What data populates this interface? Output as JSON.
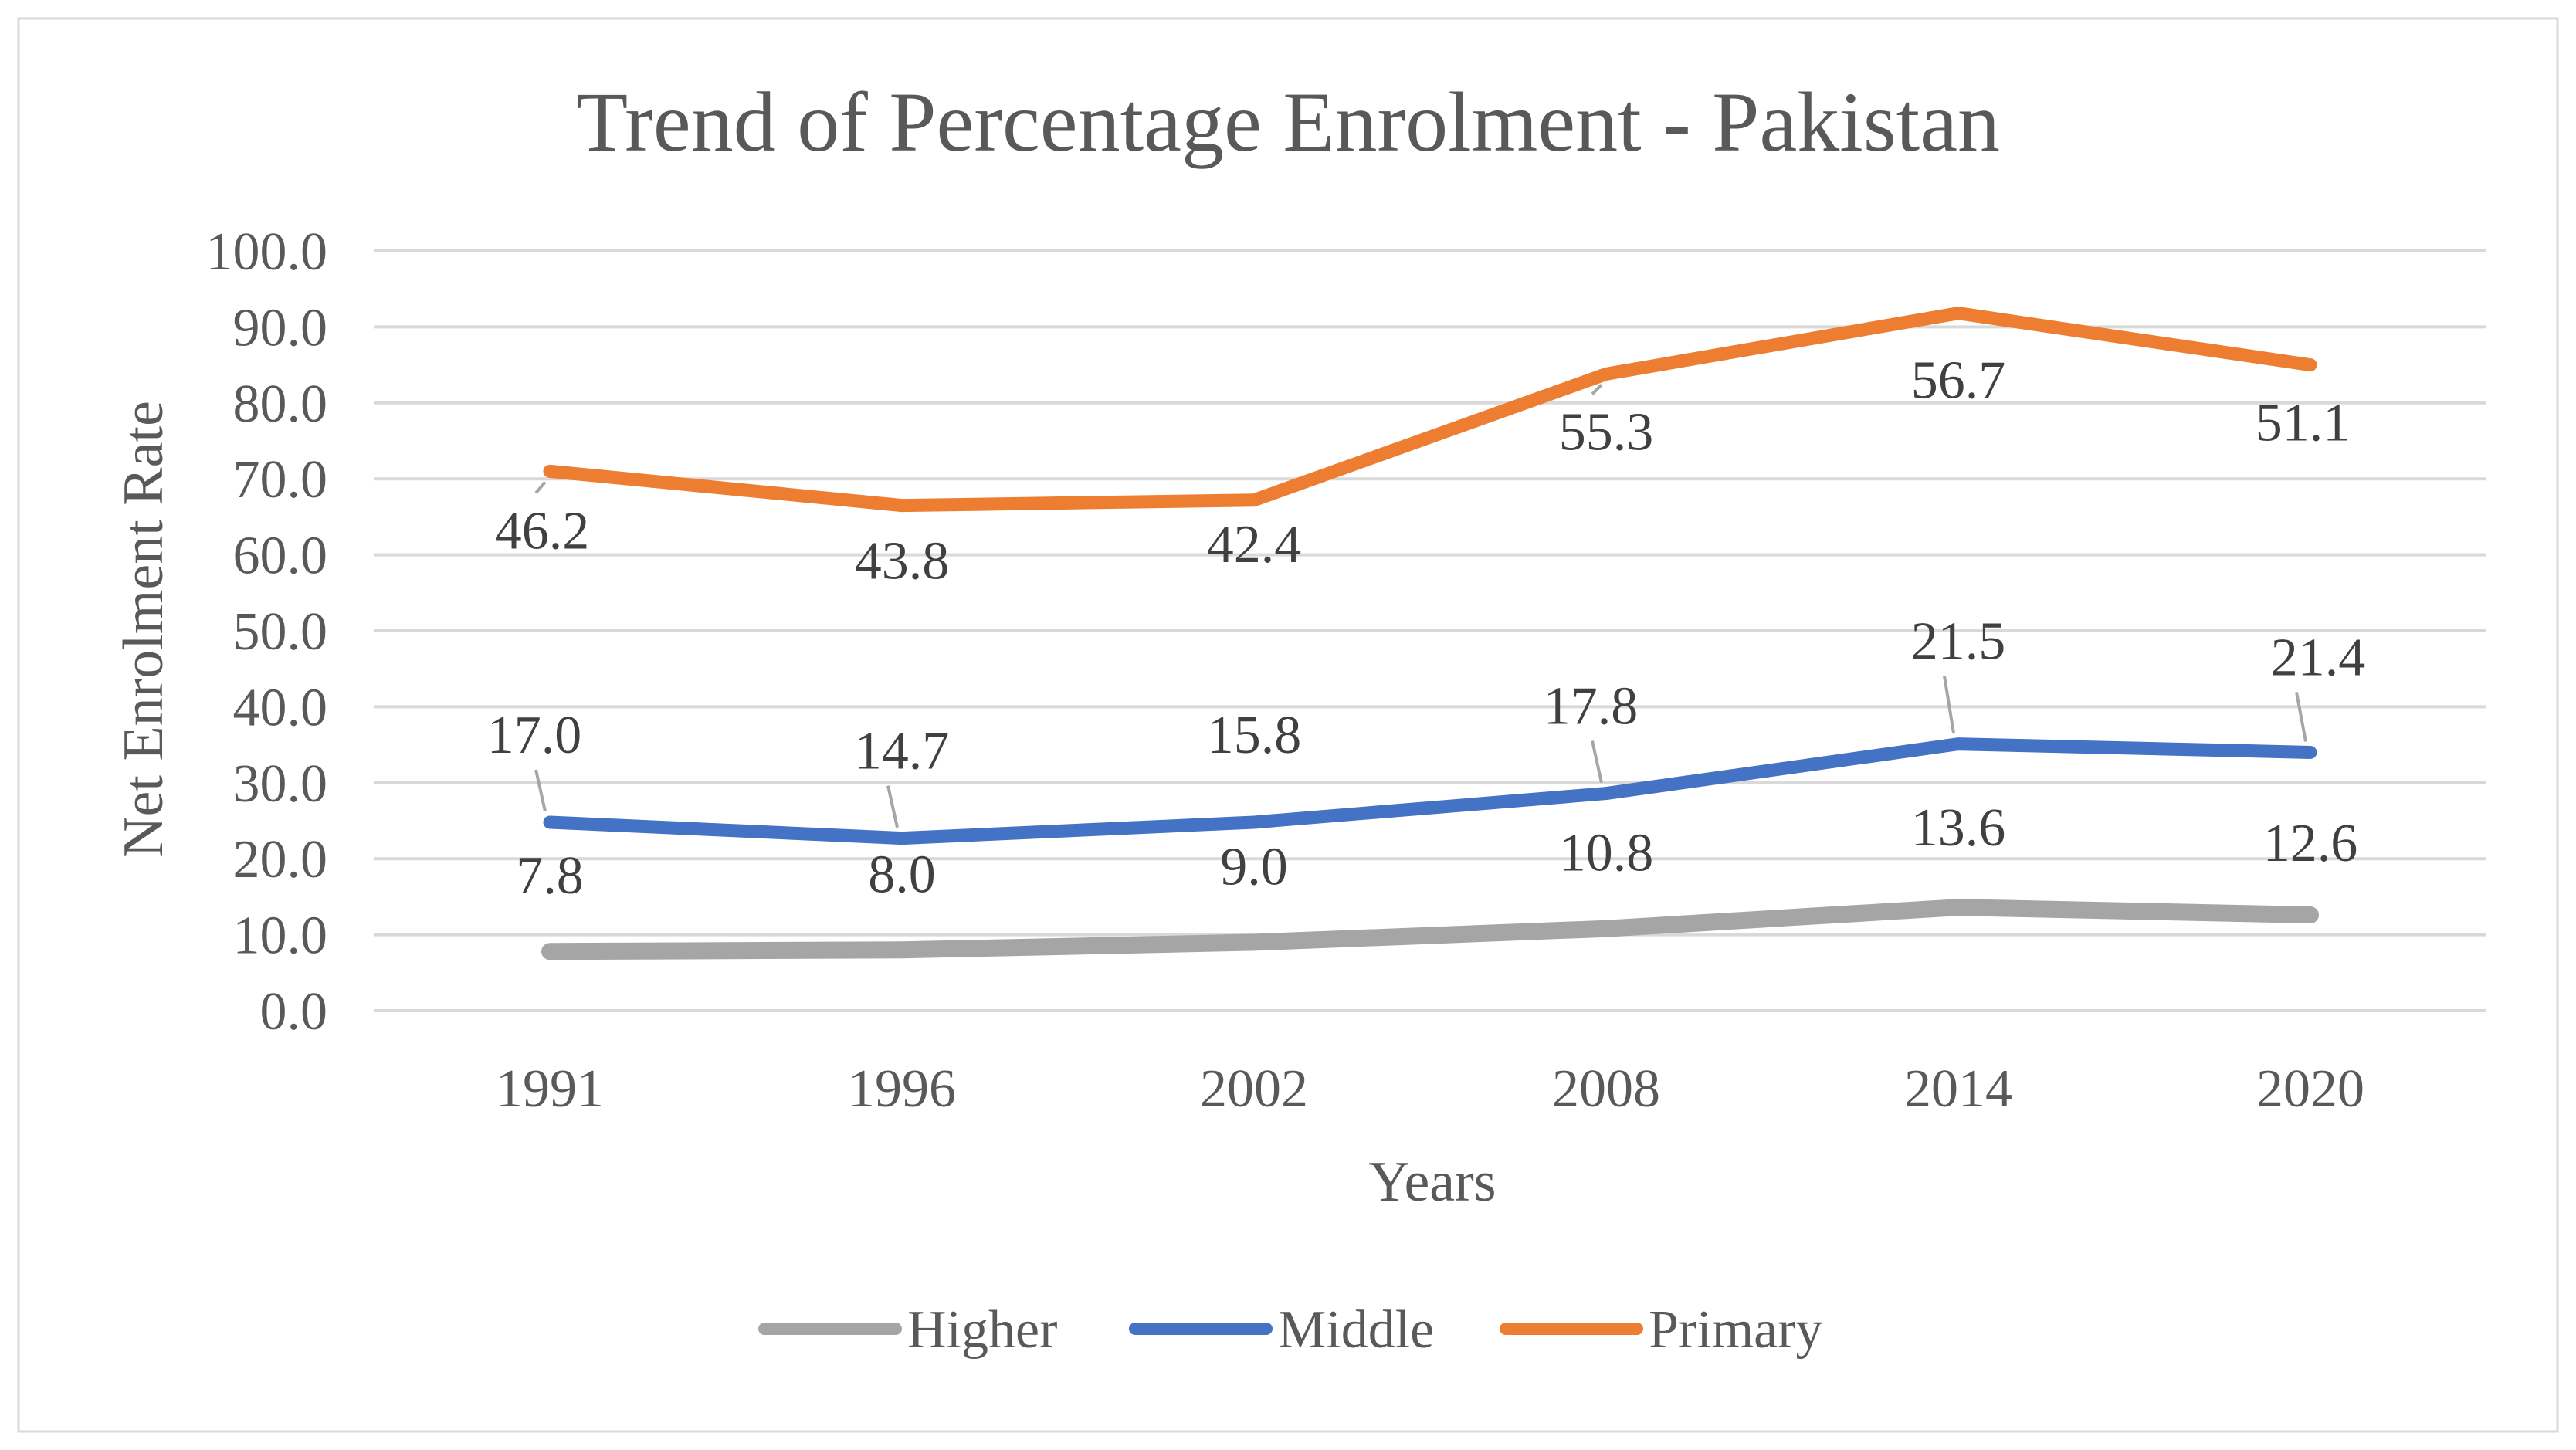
{
  "chart_data": {
    "type": "line",
    "title": "Trend of Percentage Enrolment - Pakistan",
    "xlabel": "Years",
    "ylabel": "Net Enrolment Rate",
    "categories": [
      "1991",
      "1996",
      "2002",
      "2008",
      "2014",
      "2020"
    ],
    "y_ticks": [
      "0.0",
      "10.0",
      "20.0",
      "30.0",
      "40.0",
      "50.0",
      "60.0",
      "70.0",
      "80.0",
      "90.0",
      "100.0"
    ],
    "ylim": [
      0,
      100
    ],
    "grid": true,
    "legend_position": "bottom",
    "series": [
      {
        "name": "Higher",
        "color": "#a5a5a5",
        "values": [
          7.8,
          8.0,
          9.0,
          10.8,
          13.6,
          12.6
        ],
        "labels": [
          "7.8",
          "8.0",
          "9.0",
          "10.8",
          "13.6",
          "12.6"
        ]
      },
      {
        "name": "Middle",
        "color": "#4472c4",
        "values": [
          24.8,
          22.7,
          24.8,
          28.6,
          35.1,
          34.0
        ],
        "labels": [
          "17.0",
          "14.7",
          "15.8",
          "17.8",
          "21.5",
          "21.4"
        ]
      },
      {
        "name": "Primary",
        "color": "#ed7d31",
        "values": [
          71.0,
          66.5,
          67.2,
          83.8,
          91.8,
          85.0
        ],
        "labels": [
          "46.2",
          "43.8",
          "42.4",
          "55.3",
          "56.7",
          "51.1"
        ]
      }
    ]
  }
}
